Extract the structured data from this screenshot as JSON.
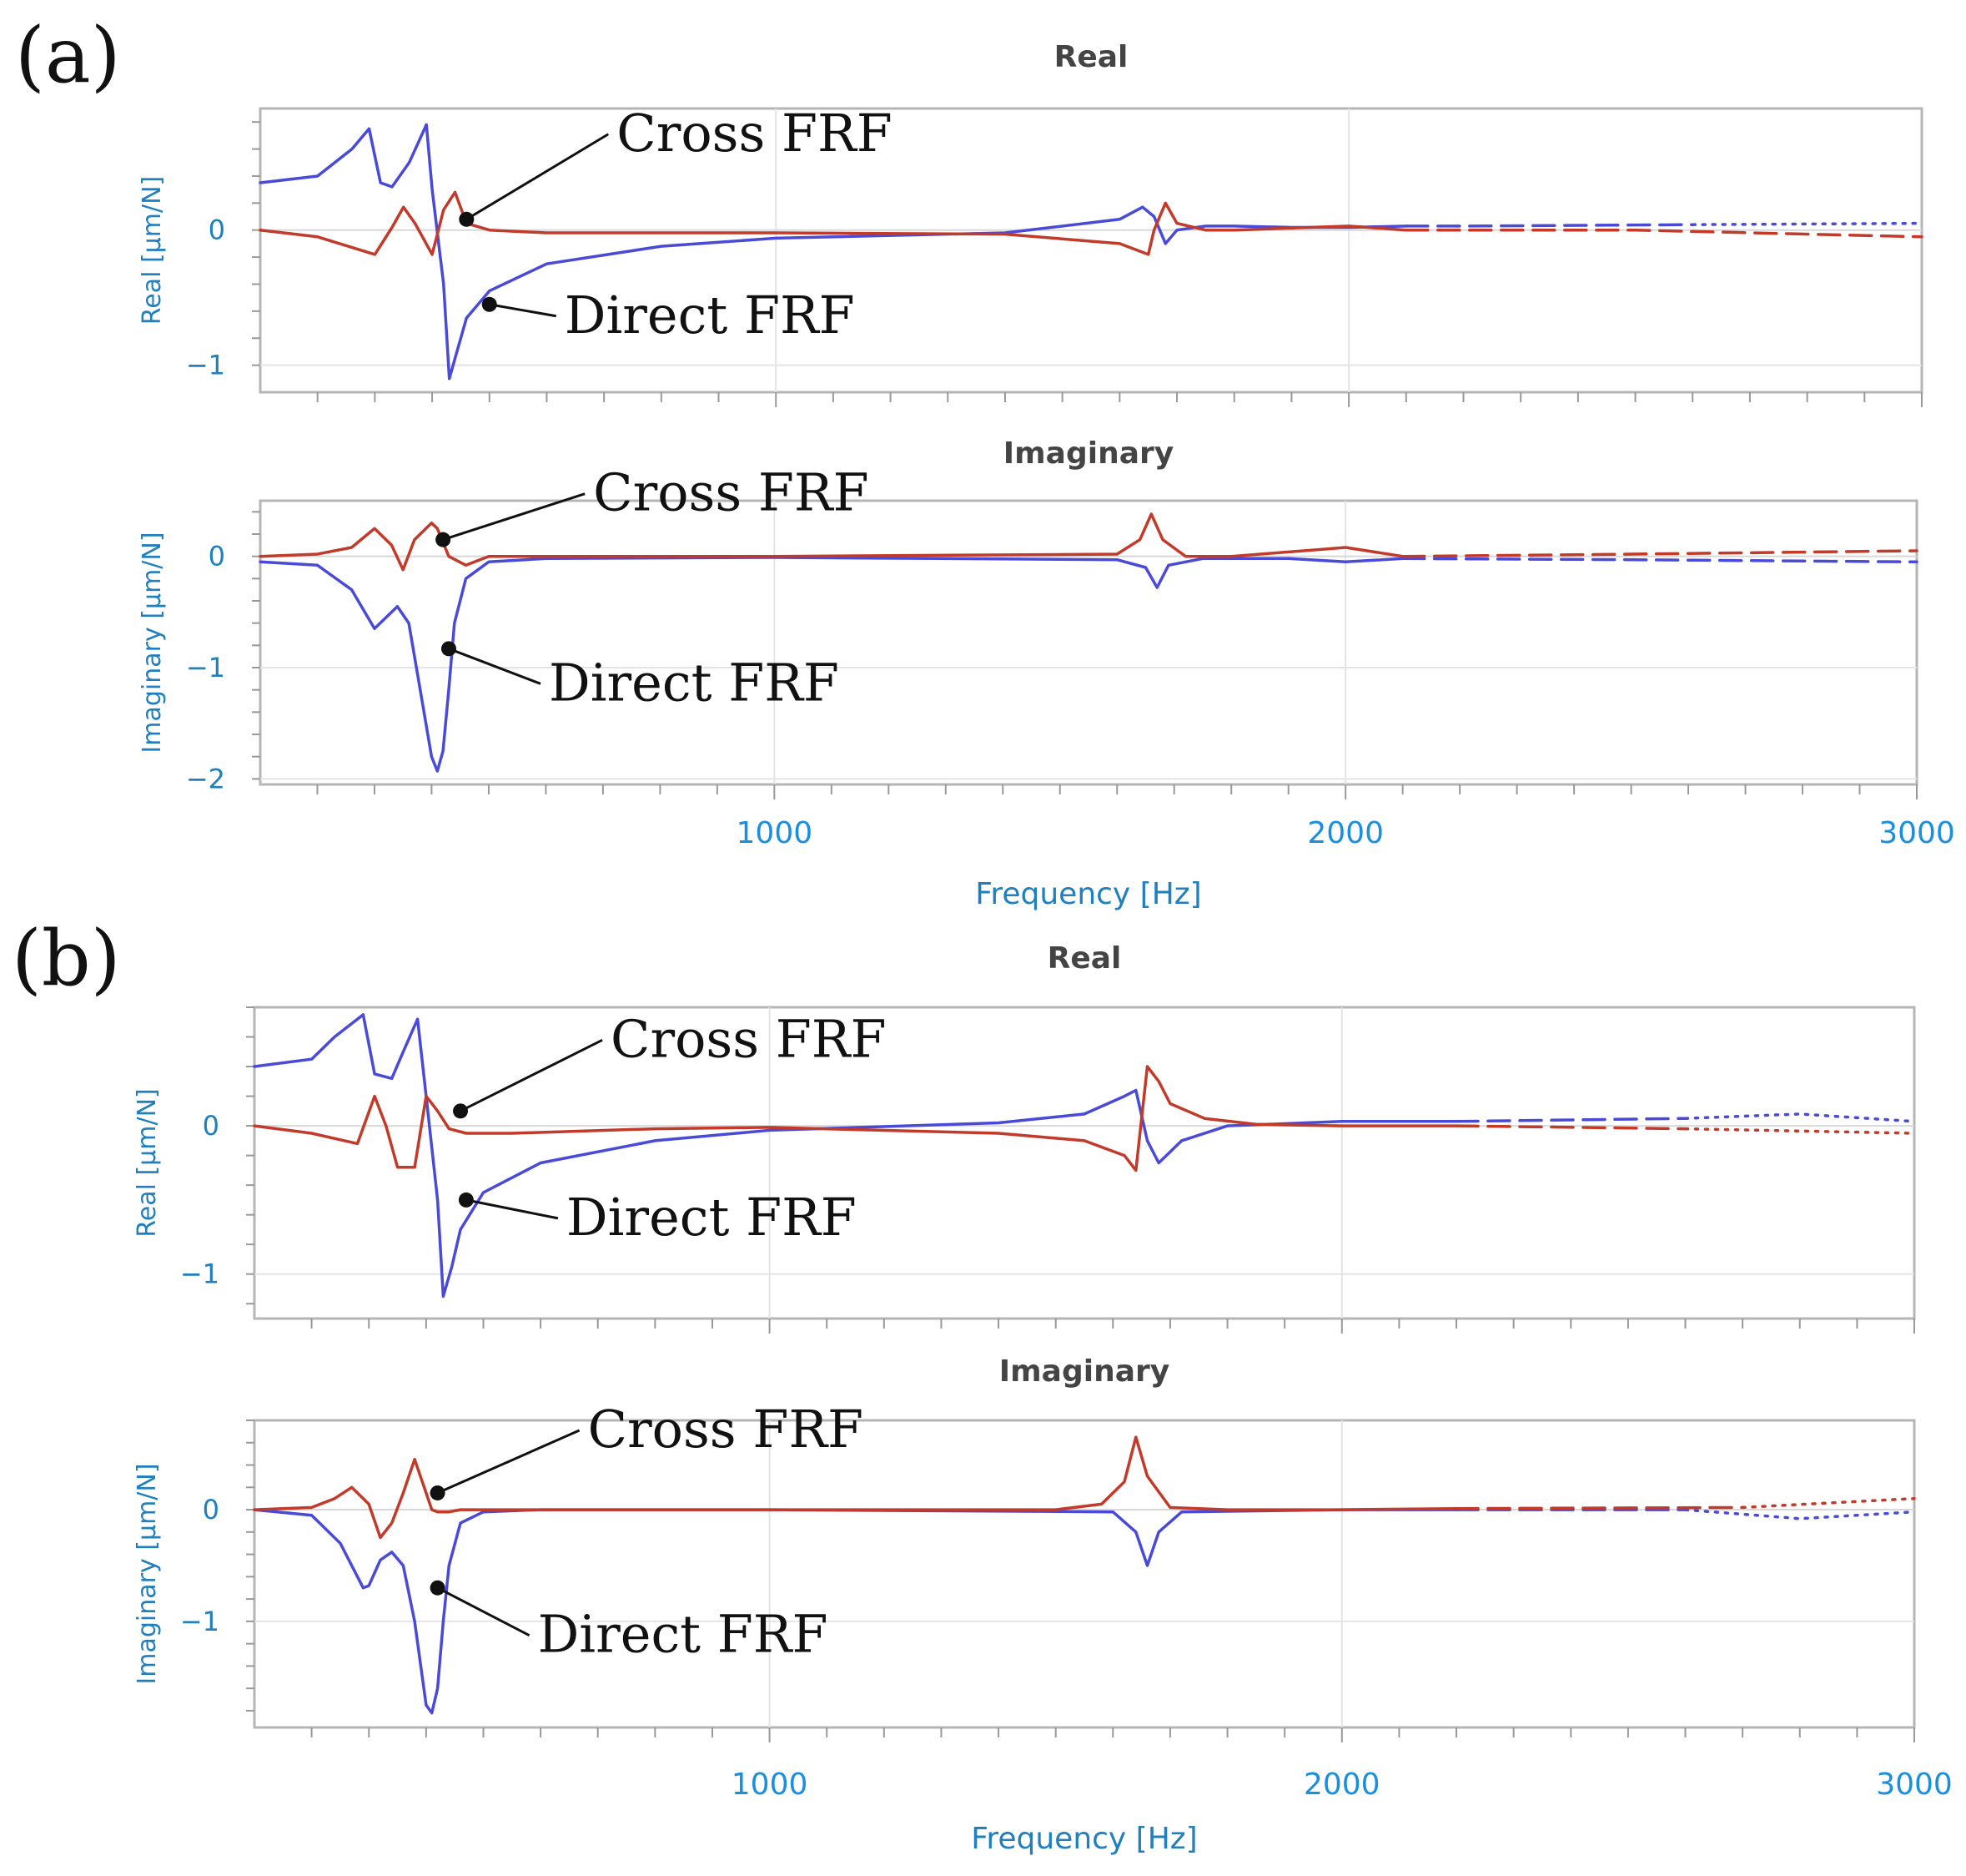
{
  "colors": {
    "direct": "#4a4ad8",
    "cross": "#c23a2a"
  },
  "chart_data": [
    {
      "type": "line",
      "panel": "(a)",
      "title": "Real",
      "ylabel": "Real [µm/N]",
      "xlabel": "",
      "xlim": [
        100,
        3000
      ],
      "ylim": [
        -1.2,
        0.9
      ],
      "x_ticks": [
        1000,
        2000,
        3000
      ],
      "y_ticks": [
        0,
        -1
      ],
      "y_tick_labels": [
        "0",
        "−1"
      ],
      "series": [
        {
          "name": "Direct FRF",
          "x": [
            100,
            200,
            260,
            290,
            310,
            330,
            360,
            390,
            400,
            420,
            430,
            440,
            460,
            500,
            600,
            800,
            1000,
            1400,
            1600,
            1640,
            1660,
            1680,
            1700,
            1750,
            1800,
            1900,
            2000,
            2100,
            2200,
            2600,
            3000
          ],
          "y": [
            0.35,
            0.4,
            0.6,
            0.75,
            0.35,
            0.32,
            0.5,
            0.78,
            0.3,
            -0.4,
            -1.1,
            -0.95,
            -0.65,
            -0.45,
            -0.25,
            -0.12,
            -0.06,
            -0.02,
            0.08,
            0.17,
            0.1,
            -0.1,
            0.0,
            0.03,
            0.03,
            0.02,
            0.02,
            0.03,
            0.03,
            0.04,
            0.05
          ]
        },
        {
          "name": "Cross FRF",
          "x": [
            100,
            200,
            300,
            330,
            350,
            370,
            400,
            420,
            440,
            460,
            500,
            600,
            1000,
            1400,
            1600,
            1650,
            1660,
            1680,
            1700,
            1750,
            1800,
            2000,
            2100,
            2500,
            3000
          ],
          "y": [
            0.0,
            -0.05,
            -0.18,
            0.02,
            0.17,
            0.05,
            -0.18,
            0.15,
            0.28,
            0.05,
            0.0,
            -0.02,
            -0.02,
            -0.03,
            -0.1,
            -0.18,
            0.0,
            0.2,
            0.05,
            0.0,
            0.0,
            0.03,
            0.0,
            0.0,
            -0.05
          ]
        }
      ],
      "annotations": [
        {
          "text": "Cross FRF",
          "x": 460,
          "y": 0.08
        },
        {
          "text": "Direct FRF",
          "x": 500,
          "y": -0.55
        }
      ]
    },
    {
      "type": "line",
      "panel": "(a)",
      "title": "Imaginary",
      "ylabel": "Imaginary [µm/N]",
      "xlabel": "Frequency [Hz]",
      "xlim": [
        100,
        3000
      ],
      "ylim": [
        -2.05,
        0.5
      ],
      "x_ticks": [
        1000,
        2000,
        3000
      ],
      "x_tick_labels": [
        "1000",
        "2000",
        "3000"
      ],
      "y_ticks": [
        0,
        -1,
        -2
      ],
      "y_tick_labels": [
        "0",
        "−1",
        "−2"
      ],
      "series": [
        {
          "name": "Direct FRF",
          "x": [
            100,
            200,
            260,
            300,
            320,
            340,
            360,
            380,
            400,
            410,
            420,
            430,
            440,
            460,
            500,
            600,
            1000,
            1600,
            1650,
            1670,
            1690,
            1750,
            1900,
            2000,
            2100,
            2500,
            3000
          ],
          "y": [
            -0.05,
            -0.08,
            -0.3,
            -0.65,
            -0.55,
            -0.45,
            -0.6,
            -1.2,
            -1.8,
            -1.93,
            -1.75,
            -1.2,
            -0.6,
            -0.2,
            -0.05,
            -0.02,
            -0.01,
            -0.03,
            -0.1,
            -0.28,
            -0.08,
            -0.02,
            -0.02,
            -0.05,
            -0.02,
            -0.03,
            -0.05
          ]
        },
        {
          "name": "Cross FRF",
          "x": [
            100,
            200,
            260,
            300,
            330,
            350,
            370,
            400,
            410,
            430,
            460,
            500,
            1000,
            1600,
            1640,
            1660,
            1680,
            1720,
            1800,
            1950,
            2000,
            2100,
            2500,
            3000
          ],
          "y": [
            0.0,
            0.02,
            0.08,
            0.25,
            0.1,
            -0.12,
            0.15,
            0.3,
            0.25,
            0.0,
            -0.08,
            0.0,
            0.0,
            0.02,
            0.15,
            0.38,
            0.15,
            0.0,
            0.0,
            0.06,
            0.08,
            0.0,
            0.02,
            0.05
          ]
        }
      ],
      "annotations": [
        {
          "text": "Cross FRF",
          "x": 420,
          "y": 0.15
        },
        {
          "text": "Direct FRF",
          "x": 430,
          "y": -0.83
        }
      ]
    },
    {
      "type": "line",
      "panel": "(b)",
      "title": "Real",
      "ylabel": "Real [µm/N]",
      "xlabel": "",
      "xlim": [
        100,
        3000
      ],
      "ylim": [
        -1.3,
        0.8
      ],
      "x_ticks": [
        1000,
        2000,
        3000
      ],
      "y_ticks": [
        0,
        -1
      ],
      "y_tick_labels": [
        "0",
        "−1"
      ],
      "series": [
        {
          "name": "Direct FRF",
          "x": [
            100,
            200,
            240,
            290,
            310,
            340,
            360,
            385,
            400,
            420,
            430,
            445,
            460,
            500,
            600,
            800,
            1000,
            1400,
            1550,
            1620,
            1640,
            1660,
            1680,
            1720,
            1800,
            2000,
            2200,
            2600,
            2800,
            3000
          ],
          "y": [
            0.4,
            0.45,
            0.6,
            0.75,
            0.35,
            0.32,
            0.5,
            0.72,
            0.2,
            -0.5,
            -1.15,
            -0.95,
            -0.7,
            -0.45,
            -0.25,
            -0.1,
            -0.03,
            0.02,
            0.08,
            0.2,
            0.24,
            -0.1,
            -0.25,
            -0.1,
            0.0,
            0.03,
            0.03,
            0.05,
            0.08,
            0.03
          ]
        },
        {
          "name": "Cross FRF",
          "x": [
            100,
            200,
            280,
            310,
            330,
            350,
            380,
            400,
            420,
            440,
            470,
            550,
            800,
            1000,
            1400,
            1550,
            1620,
            1640,
            1660,
            1680,
            1700,
            1760,
            1850,
            2000,
            2200,
            2600,
            3000
          ],
          "y": [
            0.0,
            -0.05,
            -0.12,
            0.2,
            0.0,
            -0.28,
            -0.28,
            0.2,
            0.1,
            -0.02,
            -0.05,
            -0.05,
            -0.02,
            -0.01,
            -0.05,
            -0.1,
            -0.2,
            -0.3,
            0.4,
            0.3,
            0.15,
            0.05,
            0.01,
            0.0,
            0.0,
            -0.02,
            -0.05
          ]
        }
      ],
      "annotations": [
        {
          "text": "Cross FRF",
          "x": 460,
          "y": 0.1
        },
        {
          "text": "Direct FRF",
          "x": 470,
          "y": -0.5
        }
      ]
    },
    {
      "type": "line",
      "panel": "(b)",
      "title": "Imaginary",
      "ylabel": "Imaginary [µm/N]",
      "xlabel": "Frequency [Hz]",
      "xlim": [
        100,
        3000
      ],
      "ylim": [
        -1.95,
        0.8
      ],
      "x_ticks": [
        1000,
        2000,
        3000
      ],
      "x_tick_labels": [
        "1000",
        "2000",
        "3000"
      ],
      "y_ticks": [
        0,
        -1
      ],
      "y_tick_labels": [
        "0",
        "−1"
      ],
      "series": [
        {
          "name": "Direct FRF",
          "x": [
            100,
            200,
            250,
            290,
            300,
            320,
            340,
            360,
            380,
            400,
            410,
            420,
            430,
            440,
            460,
            500,
            600,
            1000,
            1600,
            1640,
            1660,
            1680,
            1720,
            2000,
            2200,
            2600,
            2800,
            3000
          ],
          "y": [
            0.0,
            -0.05,
            -0.3,
            -0.7,
            -0.68,
            -0.45,
            -0.38,
            -0.5,
            -1.0,
            -1.75,
            -1.82,
            -1.6,
            -1.0,
            -0.5,
            -0.12,
            -0.02,
            0.0,
            0.0,
            -0.02,
            -0.2,
            -0.5,
            -0.2,
            -0.02,
            0.0,
            0.0,
            0.0,
            -0.08,
            -0.02
          ]
        },
        {
          "name": "Cross FRF",
          "x": [
            100,
            200,
            240,
            270,
            300,
            320,
            340,
            360,
            380,
            400,
            410,
            420,
            440,
            460,
            500,
            800,
            1500,
            1580,
            1620,
            1640,
            1660,
            1700,
            1800,
            2000,
            2200,
            2700,
            3000
          ],
          "y": [
            0.0,
            0.02,
            0.1,
            0.2,
            0.05,
            -0.25,
            -0.12,
            0.15,
            0.45,
            0.15,
            0.0,
            -0.02,
            -0.02,
            0.0,
            0.0,
            0.0,
            0.0,
            0.05,
            0.25,
            0.65,
            0.3,
            0.02,
            0.0,
            0.0,
            0.01,
            0.02,
            0.1
          ]
        }
      ],
      "annotations": [
        {
          "text": "Cross FRF",
          "x": 420,
          "y": 0.15
        },
        {
          "text": "Direct FRF",
          "x": 420,
          "y": -0.7
        }
      ]
    }
  ]
}
